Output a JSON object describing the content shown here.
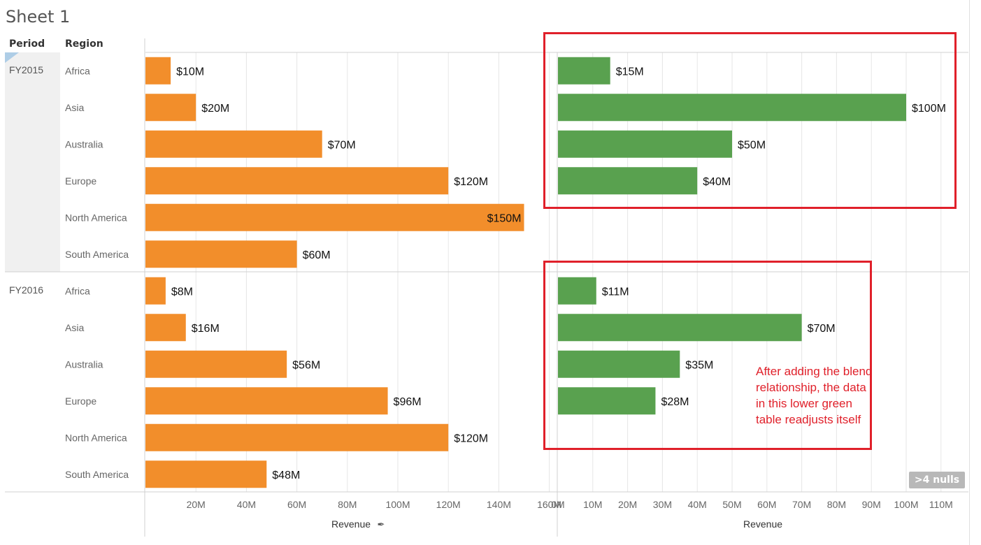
{
  "sheet": {
    "title": "Sheet 1"
  },
  "headers": {
    "period": "Period",
    "region": "Region"
  },
  "colors": {
    "orange": "#f28e2b",
    "green": "#59a14f",
    "annotation": "#e0202a",
    "grid": "#e6e6e6"
  },
  "annotation": {
    "text": "After adding the blend relationship, the data in this lower green table readjusts itself"
  },
  "nulls_badge": ">4 nulls",
  "chart_data": [
    {
      "type": "bar",
      "orientation": "horizontal",
      "panes": [
        "FY2015",
        "FY2016"
      ],
      "categories": [
        "Africa",
        "Asia",
        "Australia",
        "Europe",
        "North America",
        "South America"
      ],
      "series": [
        {
          "name": "FY2015",
          "values": [
            10,
            20,
            70,
            120,
            150,
            60
          ],
          "labels": [
            "$10M",
            "$20M",
            "$70M",
            "$120M",
            "$150M",
            "$60M"
          ]
        },
        {
          "name": "FY2016",
          "values": [
            8,
            16,
            56,
            96,
            120,
            48
          ],
          "labels": [
            "$8M",
            "$16M",
            "$56M",
            "$96M",
            "$120M",
            "$48M"
          ]
        }
      ],
      "xlabel": "Revenue",
      "xlim": [
        0,
        165
      ],
      "ticks": [
        20,
        40,
        60,
        80,
        100,
        120,
        140,
        160
      ],
      "tick_labels": [
        "20M",
        "40M",
        "60M",
        "80M",
        "100M",
        "120M",
        "140M",
        "160M"
      ],
      "pinned": true,
      "color": "orange"
    },
    {
      "type": "bar",
      "orientation": "horizontal",
      "panes": [
        "FY2015",
        "FY2016"
      ],
      "categories": [
        "Africa",
        "Asia",
        "Australia",
        "Europe",
        "North America",
        "South America"
      ],
      "series": [
        {
          "name": "FY2015",
          "values": [
            15,
            100,
            50,
            40,
            null,
            null
          ],
          "labels": [
            "$15M",
            "$100M",
            "$50M",
            "$40M",
            "",
            ""
          ]
        },
        {
          "name": "FY2016",
          "values": [
            11,
            70,
            35,
            28,
            null,
            null
          ],
          "labels": [
            "$11M",
            "$70M",
            "$35M",
            "$28M",
            "",
            ""
          ]
        }
      ],
      "xlabel": "Revenue",
      "xlim": [
        0,
        115
      ],
      "ticks": [
        0,
        10,
        20,
        30,
        40,
        50,
        60,
        70,
        80,
        90,
        100,
        110
      ],
      "tick_labels": [
        "0M",
        "10M",
        "20M",
        "30M",
        "40M",
        "50M",
        "60M",
        "70M",
        "80M",
        "90M",
        "100M",
        "110M"
      ],
      "pinned": false,
      "color": "green"
    }
  ]
}
